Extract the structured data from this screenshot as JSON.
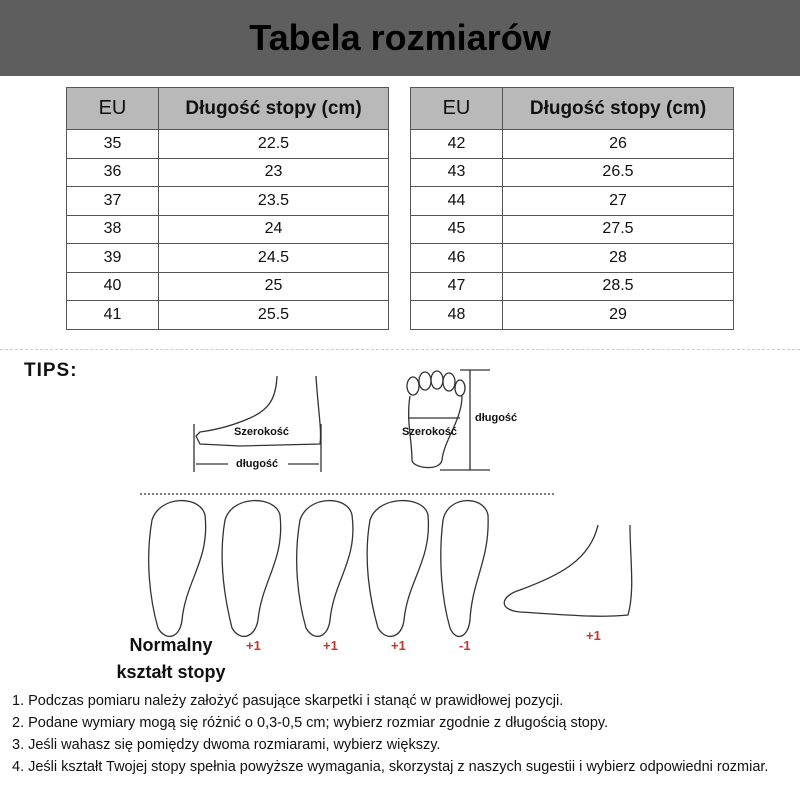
{
  "title": "Tabela rozmiarów",
  "tables": [
    {
      "headers": [
        "EU",
        "Długość stopy (cm)"
      ],
      "rows": [
        [
          "35",
          "22.5"
        ],
        [
          "36",
          "23"
        ],
        [
          "37",
          "23.5"
        ],
        [
          "38",
          "24"
        ],
        [
          "39",
          "24.5"
        ],
        [
          "40",
          "25"
        ],
        [
          "41",
          "25.5"
        ]
      ]
    },
    {
      "headers": [
        "EU",
        "Długość stopy (cm)"
      ],
      "rows": [
        [
          "42",
          "26"
        ],
        [
          "43",
          "26.5"
        ],
        [
          "44",
          "27"
        ],
        [
          "45",
          "27.5"
        ],
        [
          "46",
          "28"
        ],
        [
          "47",
          "28.5"
        ],
        [
          "48",
          "29"
        ]
      ]
    }
  ],
  "tips": {
    "label": "TIPS:",
    "side_width": "Szerokość",
    "side_length": "długość",
    "top_width": "Szerokość",
    "top_length": "długość",
    "normal_line1": "Normalny",
    "normal_line2": "kształt stopy",
    "adjustments": [
      "+1",
      "+1",
      "+1",
      "-1",
      "+1"
    ],
    "adjust_color": "#c0392b"
  },
  "notes": [
    "1. Podczas pomiaru należy założyć pasujące skarpetki i stanąć w prawidłowej pozycji.",
    "2. Podane wymiary mogą się różnić o 0,3-0,5 cm; wybierz rozmiar zgodnie z długością stopy.",
    "3. Jeśli wahasz się pomiędzy dwoma rozmiarami, wybierz większy.",
    "4. Jeśli kształt Twojej stopy spełnia powyższe wymagania, skorzystaj z naszych sugestii i wybierz odpowiedni rozmiar."
  ]
}
